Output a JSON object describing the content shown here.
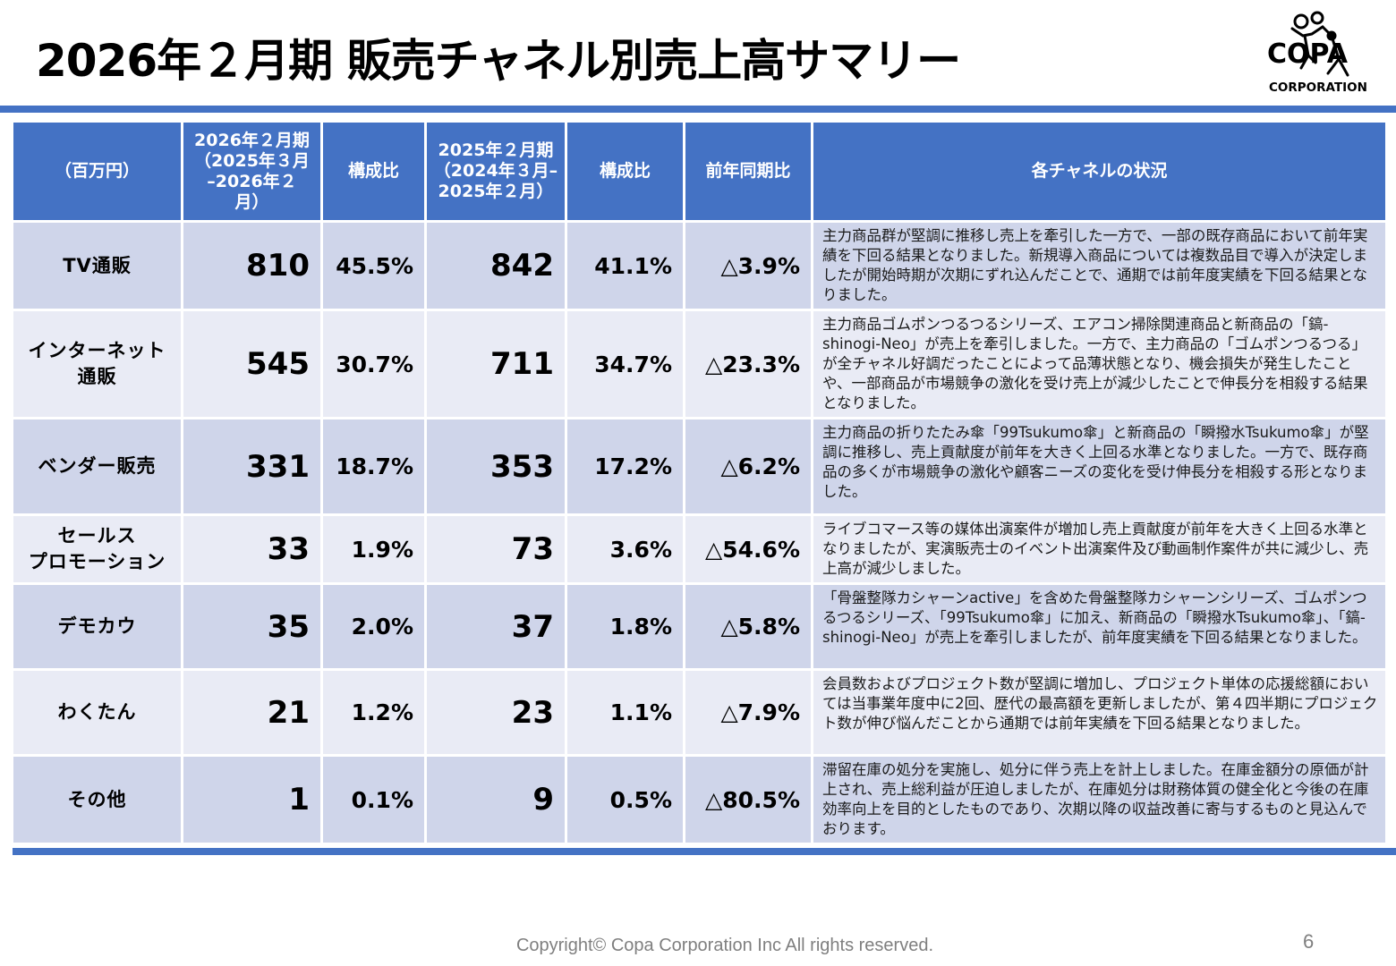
{
  "title": "2026年２月期  販売チャネル別売上高サマリー",
  "logo": {
    "text_top": "COPA",
    "text_bottom": "CORPORATION"
  },
  "table": {
    "headers": [
      "（百万円）",
      "2026年２月期\n（2025年３月\n–2026年２\n月）",
      "構成比",
      "2025年２月期\n（2024年３月–\n2025年２月）",
      "構成比",
      "前年同期比",
      "各チャネルの状況"
    ],
    "rows": [
      {
        "channel": "TV通販",
        "fy2026": "810",
        "ratio2026": "45.5%",
        "fy2025": "842",
        "ratio2025": "41.1%",
        "yoy": "△3.9%",
        "note": "主力商品群が堅調に推移し売上を牽引した一方で、一部の既存商品において前年実績を下回る結果となりました。新規導入商品については複数品目で導入が決定しましたが開始時期が次期にずれ込んだことで、通期では前年度実績を下回る結果となりました。"
      },
      {
        "channel": "インターネット\n通販",
        "fy2026": "545",
        "ratio2026": "30.7%",
        "fy2025": "711",
        "ratio2025": "34.7%",
        "yoy": "△23.3%",
        "note": "主力商品ゴムポンつるつるシリーズ、エアコン掃除関連商品と新商品の「鎬-shinogi-Neo」が売上を牽引しました。一方で、主力商品の「ゴムポンつるつる」が全チャネル好調だったことによって品薄状態となり、機会損失が発生したことや、一部商品が市場競争の激化を受け売上が減少したことで伸長分を相殺する結果となりました。"
      },
      {
        "channel": "ベンダー販売",
        "fy2026": "331",
        "ratio2026": "18.7%",
        "fy2025": "353",
        "ratio2025": "17.2%",
        "yoy": "△6.2%",
        "note": "主力商品の折りたたみ傘「99Tsukumo傘」と新商品の「瞬撥水Tsukumo傘」が堅調に推移し、売上貢献度が前年を大きく上回る水準となりました。一方で、既存商品の多くが市場競争の激化や顧客ニーズの変化を受け伸長分を相殺する形となりました。"
      },
      {
        "channel": "セールス\nプロモーション",
        "fy2026": "33",
        "ratio2026": "1.9%",
        "fy2025": "73",
        "ratio2025": "3.6%",
        "yoy": "△54.6%",
        "note": "ライブコマース等の媒体出演案件が増加し売上貢献度が前年を大きく上回る水準となりましたが、実演販売士のイベント出演案件及び動画制作案件が共に減少し、売上高が減少しました。"
      },
      {
        "channel": "デモカウ",
        "fy2026": "35",
        "ratio2026": "2.0%",
        "fy2025": "37",
        "ratio2025": "1.8%",
        "yoy": "△5.8%",
        "note": "「骨盤整隊カシャーンactive」を含めた骨盤整隊カシャーンシリーズ、ゴムポンつるつるシリーズ、「99Tsukumo傘」に加え、新商品の「瞬撥水Tsukumo傘」、「鎬-shinogi-Neo」が売上を牽引しましたが、前年度実績を下回る結果となりました。"
      },
      {
        "channel": "わくたん",
        "fy2026": "21",
        "ratio2026": "1.2%",
        "fy2025": "23",
        "ratio2025": "1.1%",
        "yoy": "△7.9%",
        "note": "会員数およびプロジェクト数が堅調に増加し、プロジェクト単体の応援総額においては当事業年度中に2回、歴代の最高額を更新しましたが、第４四半期にプロジェクト数が伸び悩んだことから通期では前年実績を下回る結果となりました。"
      },
      {
        "channel": "その他",
        "fy2026": "1",
        "ratio2026": "0.1%",
        "fy2025": "9",
        "ratio2025": "0.5%",
        "yoy": "△80.5%",
        "note": "滞留在庫の処分を実施し、処分に伴う売上を計上しました。在庫金額分の原価が計上され、売上総利益が圧迫しましたが、在庫処分は財務体質の健全化と今後の在庫効率向上を目的としたものであり、次期以降の収益改善に寄与するものと見込んでおります。"
      }
    ]
  },
  "footer": "Copyright© Copa Corporation Inc All rights reserved.",
  "page_number": "6",
  "colors": {
    "header_blue": "#4472c4",
    "row_dark": "#cfd5ea",
    "row_light": "#e9ebf5"
  }
}
